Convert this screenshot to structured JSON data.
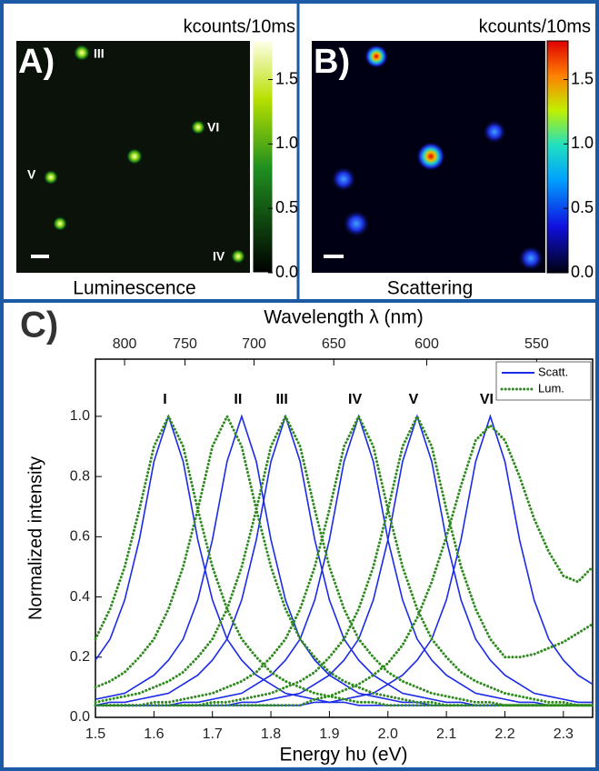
{
  "images": [
    {
      "label": "A)",
      "colorbar_title": "kcounts/10ms",
      "caption": "Luminescence",
      "clim": [
        0,
        1.8
      ],
      "colorbar_ticks": [
        {
          "value": 0,
          "label": "0.0"
        },
        {
          "value": 0.5,
          "label": "0.5"
        },
        {
          "value": 1,
          "label": "1.0"
        },
        {
          "value": 1.5,
          "label": "1.5"
        }
      ],
      "spot_labels": [
        "III",
        "VI",
        "V",
        "IV"
      ]
    },
    {
      "label": "B)",
      "colorbar_title": "kcounts/10ms",
      "caption": "Scattering",
      "clim": [
        0,
        1.8
      ],
      "colorbar_ticks": [
        {
          "value": 0,
          "label": "0.0"
        },
        {
          "value": 0.5,
          "label": "0.5"
        },
        {
          "value": 1,
          "label": "1.0"
        },
        {
          "value": 1.5,
          "label": "1.5"
        }
      ]
    }
  ],
  "chart_data": {
    "type": "line",
    "label": "C)",
    "x_label": "Energy hυ (eV)",
    "y_label": "Normalized intensity",
    "top_x_label": "Wavelength λ (nm)",
    "xlim": [
      1.5,
      2.35
    ],
    "ylim": [
      0,
      1.19
    ],
    "xticks": [
      1.5,
      1.6,
      1.7,
      1.8,
      1.9,
      {
        "value": 2,
        "label": "2.0"
      },
      2.1,
      2.2,
      2.3
    ],
    "yticks": [
      {
        "value": 0,
        "label": "0.0"
      },
      {
        "value": 0.2,
        "label": "0.2"
      },
      {
        "value": 0.4,
        "label": "0.4"
      },
      {
        "value": 0.6,
        "label": "0.6"
      },
      {
        "value": 0.8,
        "label": "0.8"
      },
      {
        "value": 1,
        "label": "1.0"
      }
    ],
    "top_xticks": [
      800,
      750,
      700,
      650,
      600,
      550
    ],
    "peak_labels": [
      "I",
      "II",
      "III",
      "IV",
      "V",
      "VI"
    ],
    "legend": [
      "Scatt.",
      "Lum."
    ],
    "legend_position": "upper right",
    "x": [
      1.5,
      1.525,
      1.55,
      1.575,
      1.6,
      1.625,
      1.65,
      1.675,
      1.7,
      1.725,
      1.75,
      1.775,
      1.8,
      1.825,
      1.85,
      1.875,
      1.9,
      1.925,
      1.95,
      1.975,
      2.0,
      2.025,
      2.05,
      2.075,
      2.1,
      2.125,
      2.15,
      2.175,
      2.2,
      2.225,
      2.25,
      2.275,
      2.3,
      2.325,
      2.35
    ],
    "series": [
      {
        "group": 0,
        "color": "#1b2be6",
        "style": "solid",
        "values": [
          0.19,
          0.26,
          0.39,
          0.59,
          0.85,
          1,
          0.85,
          0.59,
          0.39,
          0.26,
          0.19,
          0.14,
          0.11,
          0.08,
          0.07,
          0.06,
          0.05,
          0.05,
          0.04,
          0.04,
          0.04,
          0.04,
          0.04,
          0.04,
          0.04,
          0.04,
          0.04,
          0.04,
          0.04,
          0.04,
          0.04,
          0.04,
          0.04,
          0.04,
          0.04
        ]
      },
      {
        "group": 0,
        "color": "#1b2be6",
        "style": "solid",
        "values": [
          0.06,
          0.07,
          0.08,
          0.11,
          0.14,
          0.19,
          0.26,
          0.39,
          0.59,
          0.85,
          1,
          0.85,
          0.59,
          0.39,
          0.26,
          0.19,
          0.14,
          0.11,
          0.08,
          0.07,
          0.06,
          0.05,
          0.05,
          0.04,
          0.04,
          0.04,
          0.04,
          0.04,
          0.04,
          0.04,
          0.04,
          0.04,
          0.04,
          0.04,
          0.04
        ]
      },
      {
        "group": 0,
        "color": "#1b2be6",
        "style": "solid",
        "values": [
          0.04,
          0.05,
          0.05,
          0.06,
          0.07,
          0.08,
          0.11,
          0.14,
          0.19,
          0.26,
          0.39,
          0.59,
          0.85,
          1,
          0.85,
          0.59,
          0.39,
          0.26,
          0.19,
          0.14,
          0.11,
          0.08,
          0.07,
          0.06,
          0.05,
          0.05,
          0.04,
          0.04,
          0.04,
          0.04,
          0.04,
          0.04,
          0.04,
          0.04,
          0.04
        ]
      },
      {
        "group": 0,
        "color": "#1b2be6",
        "style": "solid",
        "values": [
          0.04,
          0.04,
          0.04,
          0.04,
          0.04,
          0.04,
          0.05,
          0.05,
          0.06,
          0.07,
          0.08,
          0.11,
          0.14,
          0.19,
          0.26,
          0.39,
          0.59,
          0.85,
          1,
          0.85,
          0.59,
          0.39,
          0.26,
          0.19,
          0.14,
          0.11,
          0.08,
          0.07,
          0.06,
          0.05,
          0.05,
          0.04,
          0.04,
          0.04,
          0.04
        ]
      },
      {
        "group": 0,
        "color": "#1b2be6",
        "style": "solid",
        "values": [
          0.04,
          0.04,
          0.04,
          0.04,
          0.04,
          0.04,
          0.04,
          0.04,
          0.04,
          0.04,
          0.05,
          0.05,
          0.06,
          0.07,
          0.08,
          0.11,
          0.14,
          0.19,
          0.26,
          0.39,
          0.59,
          0.85,
          1,
          0.85,
          0.59,
          0.39,
          0.26,
          0.19,
          0.14,
          0.11,
          0.08,
          0.07,
          0.06,
          0.05,
          0.05
        ]
      },
      {
        "group": 0,
        "color": "#1b2be6",
        "style": "solid",
        "values": [
          0.04,
          0.04,
          0.04,
          0.04,
          0.04,
          0.04,
          0.04,
          0.04,
          0.04,
          0.04,
          0.04,
          0.04,
          0.04,
          0.04,
          0.04,
          0.05,
          0.05,
          0.06,
          0.07,
          0.08,
          0.11,
          0.14,
          0.19,
          0.26,
          0.39,
          0.59,
          0.85,
          1,
          0.85,
          0.59,
          0.39,
          0.26,
          0.19,
          0.14,
          0.11
        ]
      },
      {
        "group": 1,
        "color": "#2f8a1f",
        "style": "dotted",
        "values": [
          0.26,
          0.36,
          0.5,
          0.69,
          0.9,
          1,
          0.9,
          0.69,
          0.5,
          0.36,
          0.26,
          0.2,
          0.15,
          0.12,
          0.1,
          0.08,
          0.07,
          0.06,
          0.05,
          0.05,
          0.04,
          0.04,
          0.04,
          0.04,
          0.04,
          0.04,
          0.04,
          0.04,
          0.04,
          0.04,
          0.04,
          0.04,
          0.04,
          0.04,
          0.04
        ]
      },
      {
        "group": 1,
        "color": "#2f8a1f",
        "style": "dotted",
        "values": [
          0.1,
          0.12,
          0.15,
          0.2,
          0.26,
          0.36,
          0.5,
          0.69,
          0.9,
          1,
          0.9,
          0.69,
          0.5,
          0.36,
          0.26,
          0.2,
          0.15,
          0.12,
          0.1,
          0.08,
          0.07,
          0.06,
          0.05,
          0.05,
          0.04,
          0.04,
          0.04,
          0.04,
          0.04,
          0.04,
          0.04,
          0.04,
          0.04,
          0.04,
          0.04
        ]
      },
      {
        "group": 1,
        "color": "#2f8a1f",
        "style": "dotted",
        "values": [
          0.05,
          0.06,
          0.07,
          0.08,
          0.1,
          0.12,
          0.15,
          0.2,
          0.26,
          0.36,
          0.5,
          0.69,
          0.9,
          1,
          0.9,
          0.69,
          0.5,
          0.36,
          0.26,
          0.2,
          0.15,
          0.12,
          0.1,
          0.08,
          0.07,
          0.06,
          0.05,
          0.05,
          0.04,
          0.04,
          0.04,
          0.04,
          0.04,
          0.04,
          0.04
        ]
      },
      {
        "group": 1,
        "color": "#2f8a1f",
        "style": "dotted",
        "values": [
          0.04,
          0.04,
          0.04,
          0.04,
          0.05,
          0.05,
          0.06,
          0.07,
          0.08,
          0.1,
          0.12,
          0.15,
          0.2,
          0.26,
          0.36,
          0.5,
          0.69,
          0.9,
          1,
          0.9,
          0.69,
          0.5,
          0.36,
          0.26,
          0.2,
          0.15,
          0.12,
          0.1,
          0.08,
          0.07,
          0.06,
          0.05,
          0.05,
          0.04,
          0.04
        ]
      },
      {
        "group": 1,
        "color": "#2f8a1f",
        "style": "dotted",
        "values": [
          0.04,
          0.04,
          0.04,
          0.04,
          0.04,
          0.04,
          0.04,
          0.04,
          0.05,
          0.05,
          0.06,
          0.07,
          0.08,
          0.1,
          0.12,
          0.15,
          0.2,
          0.26,
          0.36,
          0.5,
          0.69,
          0.9,
          1,
          0.9,
          0.69,
          0.5,
          0.36,
          0.26,
          0.2,
          0.2,
          0.21,
          0.23,
          0.25,
          0.28,
          0.31
        ]
      },
      {
        "group": 1,
        "color": "#2f8a1f",
        "style": "dotted",
        "values": [
          0.04,
          0.04,
          0.04,
          0.04,
          0.04,
          0.04,
          0.04,
          0.04,
          0.04,
          0.04,
          0.04,
          0.04,
          0.04,
          0.04,
          0.04,
          0.06,
          0.07,
          0.09,
          0.11,
          0.14,
          0.18,
          0.24,
          0.33,
          0.45,
          0.6,
          0.77,
          0.92,
          0.97,
          0.92,
          0.8,
          0.66,
          0.55,
          0.47,
          0.45,
          0.5
        ]
      }
    ]
  }
}
